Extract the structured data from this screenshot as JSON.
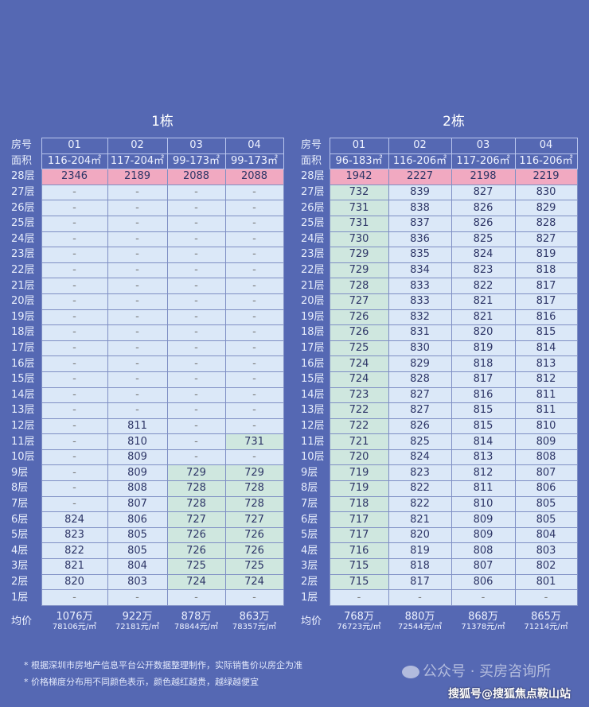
{
  "buildings": [
    {
      "title": "1栋",
      "room_label": "房号",
      "area_label": "面积",
      "avg_label": "均价",
      "rooms": [
        "01",
        "02",
        "03",
        "04"
      ],
      "areas": [
        "116-204㎡",
        "117-204㎡",
        "99-173㎡",
        "99-173㎡"
      ],
      "rows": [
        {
          "floor": "28层",
          "cells": [
            "2346",
            "2189",
            "2088",
            "2088"
          ],
          "tones": "rrrr"
        },
        {
          "floor": "27层",
          "cells": [
            "-",
            "-",
            "-",
            "-"
          ],
          "tones": "bbbb"
        },
        {
          "floor": "26层",
          "cells": [
            "-",
            "-",
            "-",
            "-"
          ],
          "tones": "bbbb"
        },
        {
          "floor": "25层",
          "cells": [
            "-",
            "-",
            "-",
            "-"
          ],
          "tones": "bbbb"
        },
        {
          "floor": "24层",
          "cells": [
            "-",
            "-",
            "-",
            "-"
          ],
          "tones": "bbbb"
        },
        {
          "floor": "23层",
          "cells": [
            "-",
            "-",
            "-",
            "-"
          ],
          "tones": "bbbb"
        },
        {
          "floor": "22层",
          "cells": [
            "-",
            "-",
            "-",
            "-"
          ],
          "tones": "bbbb"
        },
        {
          "floor": "21层",
          "cells": [
            "-",
            "-",
            "-",
            "-"
          ],
          "tones": "bbbb"
        },
        {
          "floor": "20层",
          "cells": [
            "-",
            "-",
            "-",
            "-"
          ],
          "tones": "bbbb"
        },
        {
          "floor": "19层",
          "cells": [
            "-",
            "-",
            "-",
            "-"
          ],
          "tones": "bbbb"
        },
        {
          "floor": "18层",
          "cells": [
            "-",
            "-",
            "-",
            "-"
          ],
          "tones": "bbbb"
        },
        {
          "floor": "17层",
          "cells": [
            "-",
            "-",
            "-",
            "-"
          ],
          "tones": "bbbb"
        },
        {
          "floor": "16层",
          "cells": [
            "-",
            "-",
            "-",
            "-"
          ],
          "tones": "bbbb"
        },
        {
          "floor": "15层",
          "cells": [
            "-",
            "-",
            "-",
            "-"
          ],
          "tones": "bbbb"
        },
        {
          "floor": "14层",
          "cells": [
            "-",
            "-",
            "-",
            "-"
          ],
          "tones": "bbbb"
        },
        {
          "floor": "13层",
          "cells": [
            "-",
            "-",
            "-",
            "-"
          ],
          "tones": "bbbb"
        },
        {
          "floor": "12层",
          "cells": [
            "-",
            "811",
            "-",
            "-"
          ],
          "tones": "bbbb"
        },
        {
          "floor": "11层",
          "cells": [
            "-",
            "810",
            "-",
            "731"
          ],
          "tones": "bbbg"
        },
        {
          "floor": "10层",
          "cells": [
            "-",
            "809",
            "-",
            "-"
          ],
          "tones": "bbbb"
        },
        {
          "floor": "9层",
          "cells": [
            "-",
            "809",
            "729",
            "729"
          ],
          "tones": "bbgg"
        },
        {
          "floor": "8层",
          "cells": [
            "-",
            "808",
            "728",
            "728"
          ],
          "tones": "bbgg"
        },
        {
          "floor": "7层",
          "cells": [
            "-",
            "807",
            "728",
            "728"
          ],
          "tones": "bbgg"
        },
        {
          "floor": "6层",
          "cells": [
            "824",
            "806",
            "727",
            "727"
          ],
          "tones": "bbgg"
        },
        {
          "floor": "5层",
          "cells": [
            "823",
            "805",
            "726",
            "726"
          ],
          "tones": "bbgg"
        },
        {
          "floor": "4层",
          "cells": [
            "822",
            "805",
            "726",
            "726"
          ],
          "tones": "bbgg"
        },
        {
          "floor": "3层",
          "cells": [
            "821",
            "804",
            "725",
            "725"
          ],
          "tones": "bbgg"
        },
        {
          "floor": "2层",
          "cells": [
            "820",
            "803",
            "724",
            "724"
          ],
          "tones": "bbgg"
        },
        {
          "floor": "1层",
          "cells": [
            "-",
            "-",
            "-",
            "-"
          ],
          "tones": "bbbb"
        }
      ],
      "avg": [
        {
          "total": "1076万",
          "unit": "78106元/㎡"
        },
        {
          "total": "922万",
          "unit": "72181元/㎡"
        },
        {
          "total": "878万",
          "unit": "78844元/㎡"
        },
        {
          "total": "863万",
          "unit": "78357元/㎡"
        }
      ]
    },
    {
      "title": "2栋",
      "room_label": "房号",
      "area_label": "面积",
      "avg_label": "均价",
      "rooms": [
        "01",
        "02",
        "03",
        "04"
      ],
      "areas": [
        "96-183㎡",
        "116-206㎡",
        "117-206㎡",
        "116-206㎡"
      ],
      "rows": [
        {
          "floor": "28层",
          "cells": [
            "1942",
            "2227",
            "2198",
            "2219"
          ],
          "tones": "rrrr"
        },
        {
          "floor": "27层",
          "cells": [
            "732",
            "839",
            "827",
            "830"
          ],
          "tones": "gbbb"
        },
        {
          "floor": "26层",
          "cells": [
            "731",
            "838",
            "826",
            "829"
          ],
          "tones": "gbbb"
        },
        {
          "floor": "25层",
          "cells": [
            "731",
            "837",
            "826",
            "828"
          ],
          "tones": "gbbb"
        },
        {
          "floor": "24层",
          "cells": [
            "730",
            "836",
            "825",
            "827"
          ],
          "tones": "gbbb"
        },
        {
          "floor": "23层",
          "cells": [
            "729",
            "835",
            "824",
            "819"
          ],
          "tones": "gbbb"
        },
        {
          "floor": "22层",
          "cells": [
            "729",
            "834",
            "823",
            "818"
          ],
          "tones": "gbbb"
        },
        {
          "floor": "21层",
          "cells": [
            "728",
            "833",
            "822",
            "817"
          ],
          "tones": "gbbb"
        },
        {
          "floor": "20层",
          "cells": [
            "727",
            "833",
            "821",
            "817"
          ],
          "tones": "gbbb"
        },
        {
          "floor": "19层",
          "cells": [
            "726",
            "832",
            "821",
            "816"
          ],
          "tones": "gbbb"
        },
        {
          "floor": "18层",
          "cells": [
            "726",
            "831",
            "820",
            "815"
          ],
          "tones": "gbbb"
        },
        {
          "floor": "17层",
          "cells": [
            "725",
            "830",
            "819",
            "814"
          ],
          "tones": "gbbb"
        },
        {
          "floor": "16层",
          "cells": [
            "724",
            "829",
            "818",
            "813"
          ],
          "tones": "gbbb"
        },
        {
          "floor": "15层",
          "cells": [
            "724",
            "828",
            "817",
            "812"
          ],
          "tones": "gbbb"
        },
        {
          "floor": "14层",
          "cells": [
            "723",
            "827",
            "816",
            "811"
          ],
          "tones": "gbbb"
        },
        {
          "floor": "13层",
          "cells": [
            "722",
            "827",
            "815",
            "811"
          ],
          "tones": "gbbb"
        },
        {
          "floor": "12层",
          "cells": [
            "722",
            "826",
            "815",
            "810"
          ],
          "tones": "gbbb"
        },
        {
          "floor": "11层",
          "cells": [
            "721",
            "825",
            "814",
            "809"
          ],
          "tones": "gbbb"
        },
        {
          "floor": "10层",
          "cells": [
            "720",
            "824",
            "813",
            "808"
          ],
          "tones": "gbbb"
        },
        {
          "floor": "9层",
          "cells": [
            "719",
            "823",
            "812",
            "807"
          ],
          "tones": "gbbb"
        },
        {
          "floor": "8层",
          "cells": [
            "719",
            "822",
            "811",
            "806"
          ],
          "tones": "gbbb"
        },
        {
          "floor": "7层",
          "cells": [
            "718",
            "822",
            "810",
            "805"
          ],
          "tones": "gbbb"
        },
        {
          "floor": "6层",
          "cells": [
            "717",
            "821",
            "809",
            "805"
          ],
          "tones": "gbbb"
        },
        {
          "floor": "5层",
          "cells": [
            "717",
            "820",
            "809",
            "804"
          ],
          "tones": "gbbb"
        },
        {
          "floor": "4层",
          "cells": [
            "716",
            "819",
            "808",
            "803"
          ],
          "tones": "gbbb"
        },
        {
          "floor": "3层",
          "cells": [
            "715",
            "818",
            "807",
            "802"
          ],
          "tones": "gbbb"
        },
        {
          "floor": "2层",
          "cells": [
            "715",
            "817",
            "806",
            "801"
          ],
          "tones": "gbbb"
        },
        {
          "floor": "1层",
          "cells": [
            "-",
            "-",
            "-",
            "-"
          ],
          "tones": "bbbb"
        }
      ],
      "avg": [
        {
          "total": "768万",
          "unit": "76723元/㎡"
        },
        {
          "total": "880万",
          "unit": "72544元/㎡"
        },
        {
          "total": "868万",
          "unit": "71378元/㎡"
        },
        {
          "total": "865万",
          "unit": "71214元/㎡"
        }
      ]
    }
  ],
  "notes": [
    "* 根据深圳市房地产信息平台公开数据整理制作，实际销售价以房企为准",
    "* 价格梯度分布用不同颜色表示，颜色越红越贵，越绿越便宜"
  ],
  "watermark": "公众号 · 买房咨询所",
  "source_credit": "搜狐号@搜狐焦点鞍山站",
  "colors": {
    "background": "#5568b3",
    "expensive": "#f1a9c1",
    "cheap": "#cfe7df",
    "normal": "#dbe8f8"
  }
}
